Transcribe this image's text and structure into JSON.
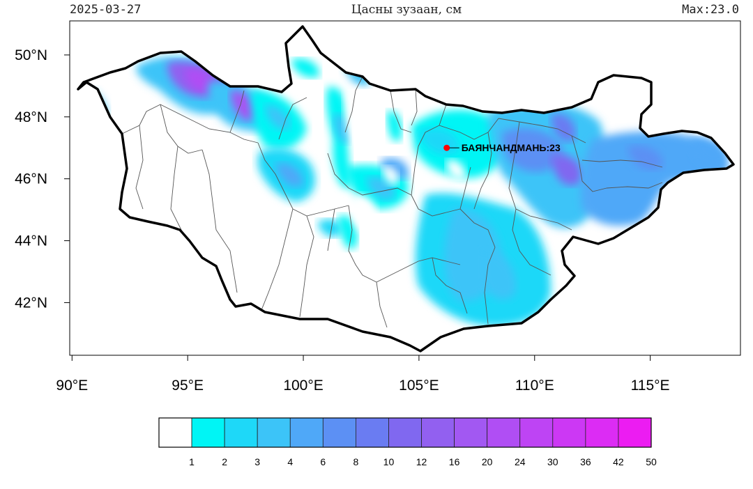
{
  "header": {
    "date": "2025-03-27",
    "title": "Цасны зузаан, см",
    "max_label": "Max:23.0"
  },
  "map": {
    "lon_range": [
      89.9,
      118.9
    ],
    "lat_range": [
      40.3,
      51.1
    ],
    "lon_ticks": [
      90,
      95,
      100,
      105,
      110,
      115
    ],
    "lon_tick_labels": [
      "90°E",
      "95°E",
      "100°E",
      "105°E",
      "110°E",
      "115°E"
    ],
    "lat_ticks": [
      42,
      44,
      46,
      48,
      50
    ],
    "lat_tick_labels": [
      "42°N",
      "44°N",
      "46°N",
      "48°N",
      "50°N"
    ],
    "station": {
      "name": "БАЯНЧАНДМАНЬ",
      "value": "23",
      "lon": 106.2,
      "lat": 47.0,
      "color": "#ff0000"
    }
  },
  "colorbar": {
    "labels": [
      "1",
      "2",
      "3",
      "4",
      "6",
      "8",
      "10",
      "12",
      "16",
      "20",
      "24",
      "30",
      "36",
      "42",
      "50"
    ],
    "colors": [
      "#ffffff",
      "#00f5f5",
      "#1ed8f8",
      "#3cc4f8",
      "#4fa8f8",
      "#5c90f4",
      "#6a7cf2",
      "#8068f0",
      "#9260f0",
      "#a258f2",
      "#b04ef4",
      "#be44f4",
      "#cc38f4",
      "#dc2cf4",
      "#ec1cf2"
    ]
  }
}
